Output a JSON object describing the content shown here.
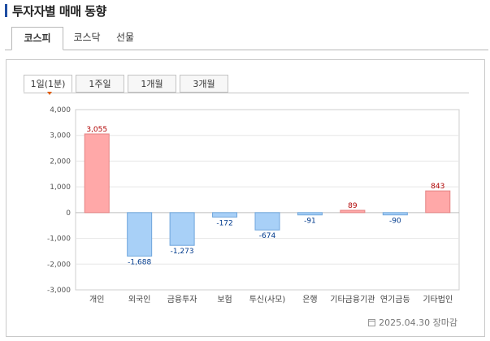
{
  "header": {
    "title": "투자자별 매매 동향"
  },
  "market_tabs": [
    {
      "label": "코스피",
      "active": true
    },
    {
      "label": "코스닥",
      "active": false
    },
    {
      "label": "선물",
      "active": false
    }
  ],
  "period_tabs": [
    {
      "label": "1일(1분)",
      "active": true
    },
    {
      "label": "1주일",
      "active": false
    },
    {
      "label": "1개월",
      "active": false
    },
    {
      "label": "3개월",
      "active": false
    }
  ],
  "chart_data": {
    "type": "bar",
    "categories": [
      "개인",
      "외국인",
      "금융투자",
      "보험",
      "투신(사모)",
      "은행",
      "기타금융기관",
      "연기금등",
      "기타법인"
    ],
    "category_labels": [
      "개인",
      "외국인",
      "금융투자",
      "보험",
      "투신(사모)",
      "은행",
      "기타금융기관",
      "연기금등",
      "기타법인"
    ],
    "values": [
      3055,
      -1688,
      -1273,
      -172,
      -674,
      -91,
      89,
      -90,
      843
    ],
    "value_labels": [
      "3,055",
      "-1,688",
      "-1,273",
      "-172",
      "-674",
      "-91",
      "89",
      "-90",
      "843"
    ],
    "yticks": [
      "4,000",
      "3,000",
      "2,000",
      "1,000",
      "0",
      "-1,000",
      "-2,000",
      "-3,000"
    ],
    "ylim": [
      -3000,
      4000
    ],
    "xlabel": "",
    "ylabel": "",
    "colors": {
      "positive_fill": "#ffa8a8",
      "positive_stroke": "#e58383",
      "negative_fill": "#a8d0f7",
      "negative_stroke": "#6fa6dc",
      "positive_label": "#b00000",
      "negative_label": "#003a8c"
    }
  },
  "footer": {
    "date_text": "2025.04.30 장마감",
    "icon": "calendar-icon"
  }
}
